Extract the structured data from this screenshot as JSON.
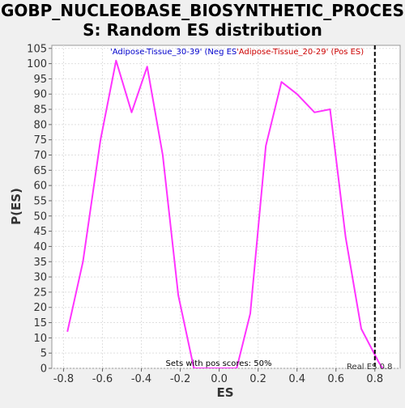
{
  "chart_data": {
    "type": "line",
    "title_line1": "GOBP_NUCLEOBASE_BIOSYNTHETIC_PROCES",
    "title_line2": "S: Random ES distribution",
    "xlabel": "ES",
    "ylabel": "P(ES)",
    "xlim": [
      -0.86,
      0.93
    ],
    "ylim": [
      0,
      106
    ],
    "x_ticks": [
      -0.8,
      -0.6,
      -0.4,
      -0.2,
      0.0,
      0.2,
      0.4,
      0.6,
      0.8
    ],
    "x_tick_labels": [
      "-0.8",
      "-0.6",
      "-0.4",
      "-0.2",
      "0.0",
      "0.2",
      "0.4",
      "0.6",
      "0.8"
    ],
    "y_ticks": [
      0,
      5,
      10,
      15,
      20,
      25,
      30,
      35,
      40,
      45,
      50,
      55,
      60,
      65,
      70,
      75,
      80,
      85,
      90,
      95,
      100,
      105
    ],
    "grid": true,
    "line_color": "#ff33ff",
    "series": [
      {
        "values_x": [
          -0.78,
          -0.7,
          -0.61,
          -0.53,
          -0.45,
          -0.37,
          -0.29,
          -0.21,
          -0.13,
          -0.05,
          0.02,
          0.09,
          0.16,
          0.24,
          0.32,
          0.4,
          0.49,
          0.57,
          0.65,
          0.73,
          0.82,
          0.84
        ],
        "values_y": [
          12,
          35,
          75,
          101,
          84,
          99,
          70,
          24,
          0,
          0,
          0,
          0,
          18,
          73,
          94,
          90,
          84,
          85,
          43,
          13,
          2,
          0
        ]
      }
    ],
    "legend": {
      "neg_label": "'Adipose-Tissue_30-39' (Neg ES)",
      "neg_color": "#0000cc",
      "pos_label": "'Adipose-Tissue_20-29' (Pos ES)",
      "pos_color": "#cc0000"
    },
    "annotations": {
      "pos_scores": "Sets with pos scores: 50%",
      "real_es_label": "Real ES 0.8",
      "real_es": 0.8
    }
  }
}
